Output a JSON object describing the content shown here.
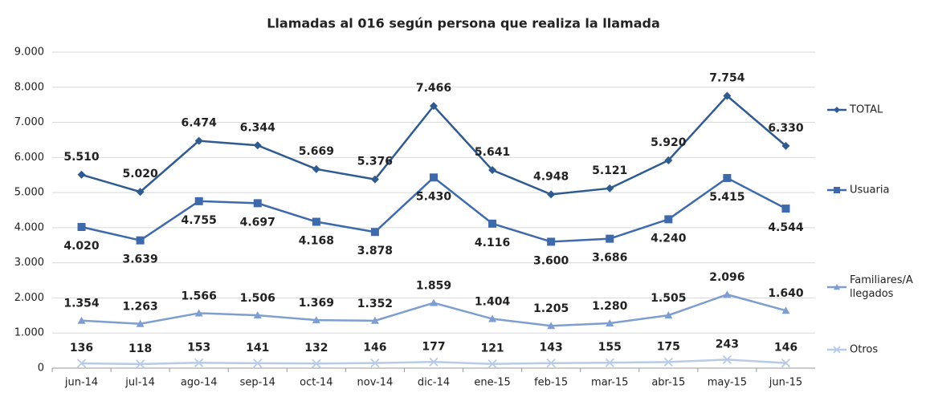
{
  "chart_data": {
    "type": "line",
    "title": "Llamadas al 016 según persona que realiza la llamada",
    "categories": [
      "jun-14",
      "jul-14",
      "ago-14",
      "sep-14",
      "oct-14",
      "nov-14",
      "dic-14",
      "ene-15",
      "feb-15",
      "mar-15",
      "abr-15",
      "may-15",
      "jun-15"
    ],
    "series": [
      {
        "name": "TOTAL",
        "color": "#2f5b8f",
        "marker": "diamond",
        "values": [
          5510,
          5020,
          6474,
          6344,
          5669,
          5376,
          7466,
          5641,
          4948,
          5121,
          5920,
          7754,
          6330
        ],
        "value_labels": [
          "5.510",
          "5.020",
          "6.474",
          "6.344",
          "5.669",
          "5.376",
          "7.466",
          "5.641",
          "4.948",
          "5.121",
          "5.920",
          "7.754",
          "6.330"
        ]
      },
      {
        "name": "Usuaria",
        "color": "#3e6aac",
        "marker": "square",
        "values": [
          4020,
          3639,
          4755,
          4697,
          4168,
          3878,
          5430,
          4116,
          3600,
          3686,
          4240,
          5415,
          4544
        ],
        "value_labels": [
          "4.020",
          "3.639",
          "4.755",
          "4.697",
          "4.168",
          "3.878",
          "5.430",
          "4.116",
          "3.600",
          "3.686",
          "4.240",
          "5.415",
          "4.544"
        ]
      },
      {
        "name": "Familiares/Allegados",
        "color": "#7f9ed0",
        "marker": "triangle",
        "values": [
          1354,
          1263,
          1566,
          1506,
          1369,
          1352,
          1859,
          1404,
          1205,
          1280,
          1505,
          2096,
          1640
        ],
        "value_labels": [
          "1.354",
          "1.263",
          "1.566",
          "1.506",
          "1.369",
          "1.352",
          "1.859",
          "1.404",
          "1.205",
          "1.280",
          "1.505",
          "2.096",
          "1.640"
        ]
      },
      {
        "name": "Otros",
        "color": "#b7cbe6",
        "marker": "x",
        "values": [
          136,
          118,
          153,
          141,
          132,
          146,
          177,
          121,
          143,
          155,
          175,
          243,
          146
        ]
      }
    ],
    "ylim": [
      0,
      9000
    ],
    "yticks": [
      {
        "value": 0,
        "label": "0"
      },
      {
        "value": 1000,
        "label": "1.000"
      },
      {
        "value": 2000,
        "label": "2.000"
      },
      {
        "value": 3000,
        "label": "3.000"
      },
      {
        "value": 4000,
        "label": "4.000"
      },
      {
        "value": 5000,
        "label": "5.000"
      },
      {
        "value": 6000,
        "label": "6.000"
      },
      {
        "value": 7000,
        "label": "7.000"
      },
      {
        "value": 8000,
        "label": "8.000"
      },
      {
        "value": 9000,
        "label": "9.000"
      }
    ],
    "grid": true,
    "legend": "right"
  }
}
